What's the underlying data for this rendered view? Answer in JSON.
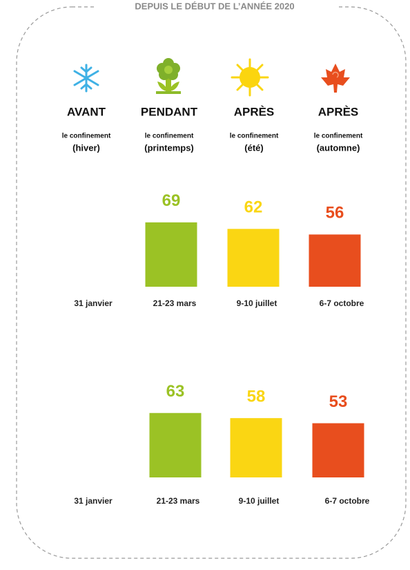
{
  "header": {
    "title": "DEPUIS LE DÉBUT DE L’ANNÉE 2020",
    "columns": [
      {
        "title": "AVANT",
        "subtitle": "le confinement",
        "season": "(hiver)"
      },
      {
        "title": "PENDANT",
        "subtitle": "le confinement",
        "season": "(printemps)"
      },
      {
        "title": "APRÈS",
        "subtitle": "le confinement",
        "season": "(été)"
      },
      {
        "title": "APRÈS",
        "subtitle": "le confinement",
        "season": "(automne)"
      }
    ]
  },
  "chart_data": [
    {
      "type": "bar",
      "categories": [
        "31 janvier",
        "21-23 mars",
        "9-10 juillet",
        "6-7 octobre"
      ],
      "values": [
        null,
        69,
        62,
        56
      ],
      "colors": [
        "#3fb1e5",
        "#9bc225",
        "#fad613",
        "#e84e1e"
      ]
    },
    {
      "type": "bar",
      "categories": [
        "31 janvier",
        "21-23 mars",
        "9-10 juillet",
        "6-7 octobre"
      ],
      "values": [
        null,
        63,
        58,
        53
      ],
      "colors": [
        "#3fb1e5",
        "#9bc225",
        "#fad613",
        "#e84e1e"
      ]
    }
  ]
}
